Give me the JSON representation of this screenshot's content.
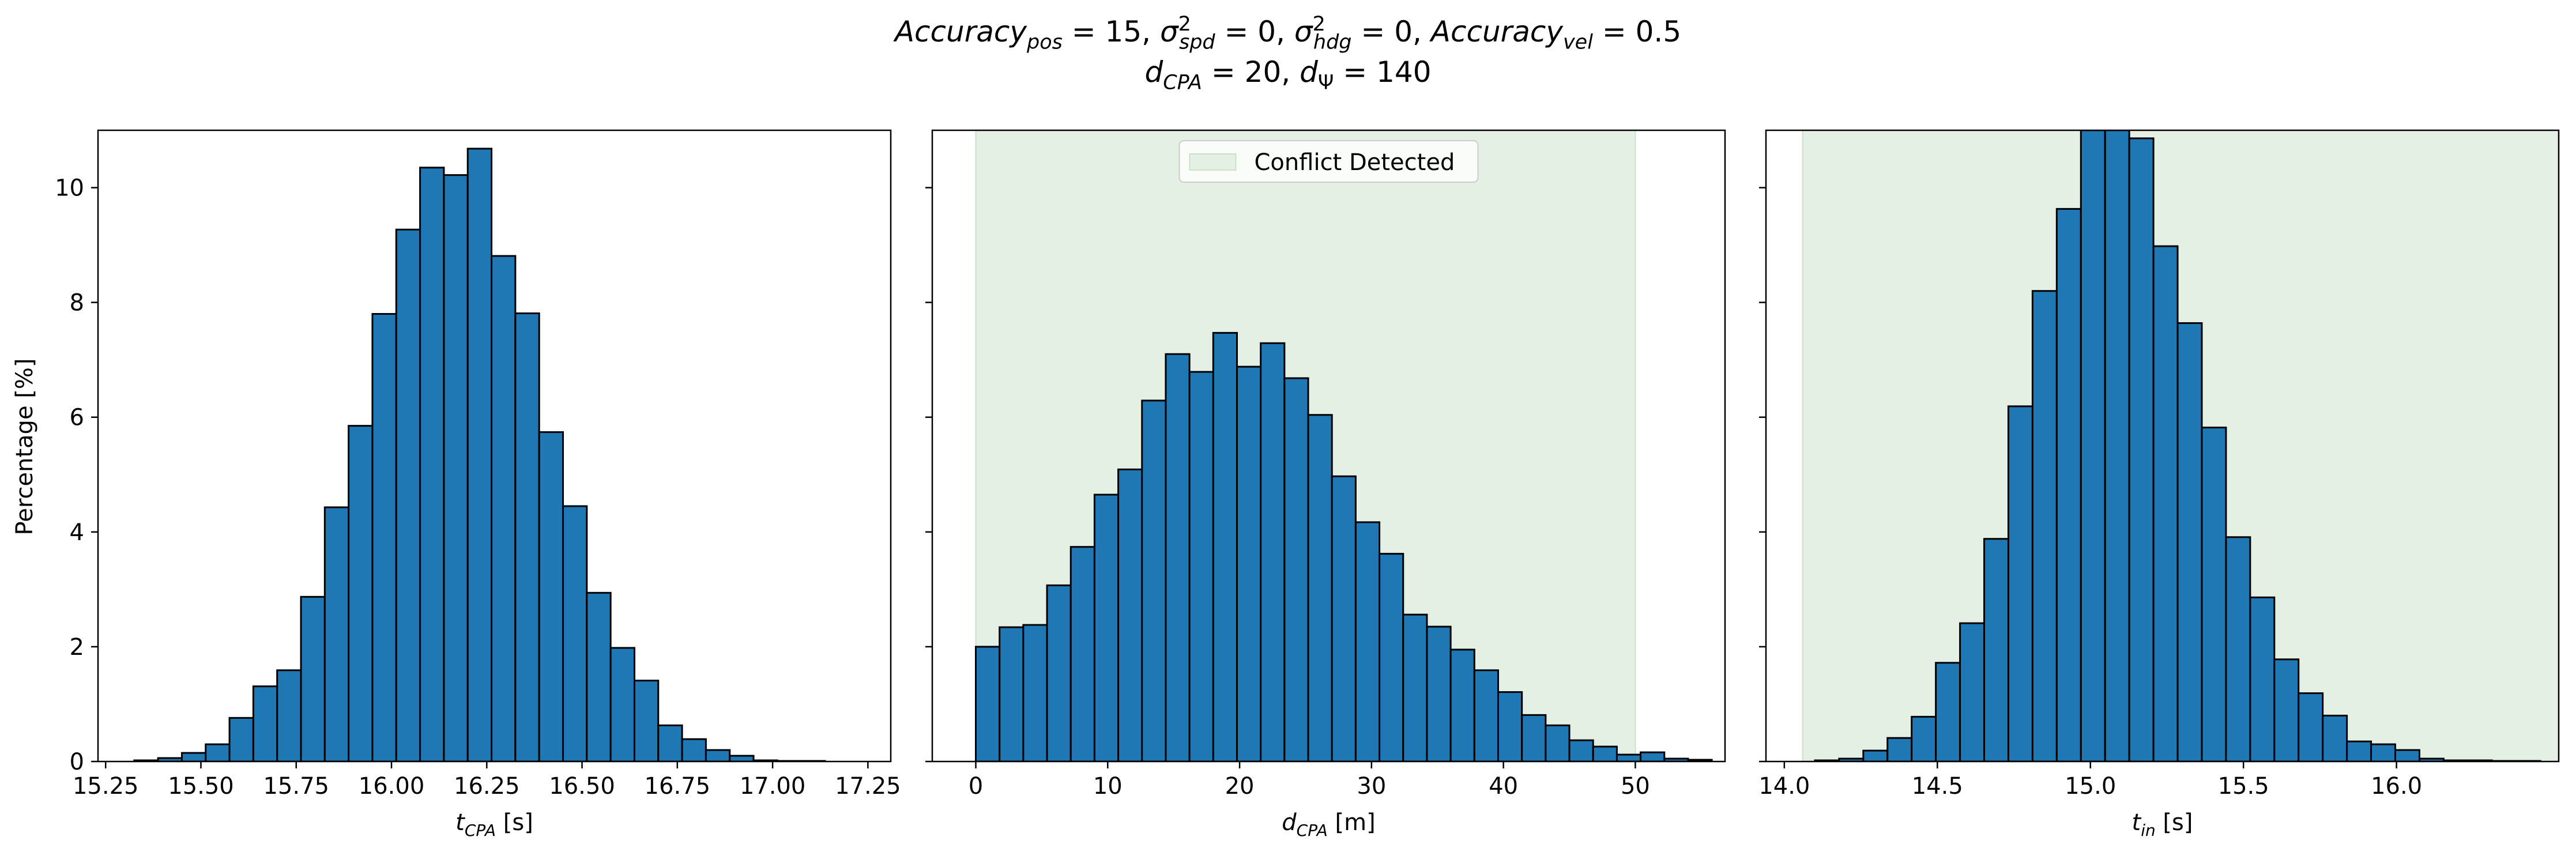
{
  "figure": {
    "title_line1": [
      {
        "t": "Accuracy",
        "it": true
      },
      {
        "t": "pos",
        "it": true,
        "sub": true
      },
      {
        "t": " = 15, "
      },
      {
        "t": "σ",
        "it": true
      },
      {
        "t": "2",
        "sup": true
      },
      {
        "t": "spd",
        "it": true,
        "subsup": true
      },
      {
        "t": " = 0, "
      },
      {
        "t": "σ",
        "it": true
      },
      {
        "t": "2",
        "sup": true
      },
      {
        "t": "hdg",
        "it": true,
        "subsup": true
      },
      {
        "t": " = 0, "
      },
      {
        "t": "Accuracy",
        "it": true
      },
      {
        "t": "vel",
        "it": true,
        "sub": true
      },
      {
        "t": " = 0.5"
      }
    ],
    "title_line2": [
      {
        "t": "d",
        "it": true
      },
      {
        "t": "CPA",
        "it": true,
        "sub": true
      },
      {
        "t": " = 20, "
      },
      {
        "t": "d",
        "it": true
      },
      {
        "t": "Ψ",
        "sub": true
      },
      {
        "t": " = 140"
      }
    ],
    "shared_ylabel": "Percentage [%]"
  },
  "colors": {
    "bar": "#1f77b4",
    "edge": "#000000",
    "shade": "#e4f0e4",
    "shade_edge": "#c9e2c9"
  },
  "chart_data": [
    {
      "type": "bar",
      "subtype": "histogram",
      "xlabel": [
        {
          "t": "t",
          "it": true
        },
        {
          "t": "CPA",
          "it": true,
          "sub": true
        },
        {
          "t": " [s]"
        }
      ],
      "ylabel": "Percentage [%]",
      "xlim": [
        15.23,
        17.31
      ],
      "ylim": [
        0,
        11
      ],
      "xticks": [
        15.25,
        15.5,
        15.75,
        16.0,
        16.25,
        16.5,
        16.75,
        17.0,
        17.25
      ],
      "xtick_labels": [
        "15.25",
        "15.50",
        "15.75",
        "16.00",
        "16.25",
        "16.50",
        "16.75",
        "17.00",
        "17.25"
      ],
      "yticks": [
        0,
        2,
        4,
        6,
        8,
        10
      ],
      "bin_start": 15.325,
      "bin_width": 0.0625,
      "values": [
        0.02,
        0.06,
        0.15,
        0.3,
        0.76,
        1.31,
        1.59,
        2.87,
        4.43,
        5.85,
        7.8,
        9.27,
        10.35,
        10.22,
        10.68,
        8.81,
        7.81,
        5.74,
        4.45,
        2.94,
        1.98,
        1.41,
        0.63,
        0.39,
        0.2,
        0.1,
        0.02,
        0.01,
        0.01
      ],
      "shade": null
    },
    {
      "type": "bar",
      "subtype": "histogram",
      "xlabel": [
        {
          "t": "d",
          "it": true
        },
        {
          "t": "CPA",
          "it": true,
          "sub": true
        },
        {
          "t": " [m]"
        }
      ],
      "xlim": [
        -3.3,
        56.8
      ],
      "ylim": [
        0,
        11
      ],
      "xticks": [
        0,
        10,
        20,
        30,
        40,
        50
      ],
      "xtick_labels": [
        "0",
        "10",
        "20",
        "30",
        "40",
        "50"
      ],
      "yticks": [
        0,
        2,
        4,
        6,
        8,
        10
      ],
      "bin_start": 0,
      "bin_width": 1.8,
      "values": [
        2.0,
        2.34,
        2.38,
        3.07,
        3.74,
        4.65,
        5.09,
        6.29,
        7.1,
        6.79,
        7.47,
        6.88,
        7.29,
        6.68,
        6.04,
        4.97,
        4.17,
        3.62,
        2.56,
        2.35,
        1.95,
        1.59,
        1.21,
        0.81,
        0.63,
        0.37,
        0.26,
        0.12,
        0.16,
        0.05,
        0.03
      ],
      "shade": {
        "x0": 0,
        "x1": 50,
        "label": "Conflict Detected",
        "legend_position": "upper center"
      }
    },
    {
      "type": "bar",
      "subtype": "histogram",
      "xlabel": [
        {
          "t": "t",
          "it": true
        },
        {
          "t": "in",
          "it": true,
          "sub": true
        },
        {
          "t": " [s]"
        }
      ],
      "xlim": [
        13.94,
        16.53
      ],
      "ylim": [
        0,
        11
      ],
      "xticks": [
        14.0,
        14.5,
        15.0,
        15.5,
        16.0
      ],
      "xtick_labels": [
        "14.0",
        "14.5",
        "15.0",
        "15.5",
        "16.0"
      ],
      "yticks": [
        0,
        2,
        4,
        6,
        8,
        10
      ],
      "bin_start": 14.1,
      "bin_width": 0.079,
      "values": [
        0.02,
        0.05,
        0.19,
        0.41,
        0.78,
        1.72,
        2.41,
        3.88,
        6.19,
        8.2,
        9.63,
        11.0,
        11.0,
        10.86,
        8.98,
        7.64,
        5.82,
        3.91,
        2.86,
        1.78,
        1.19,
        0.8,
        0.35,
        0.3,
        0.2,
        0.05,
        0.02,
        0.02,
        0.01,
        0.01
      ],
      "shade": {
        "x0": 14.06,
        "x1": 16.53,
        "label": null,
        "legend_position": null
      }
    }
  ]
}
